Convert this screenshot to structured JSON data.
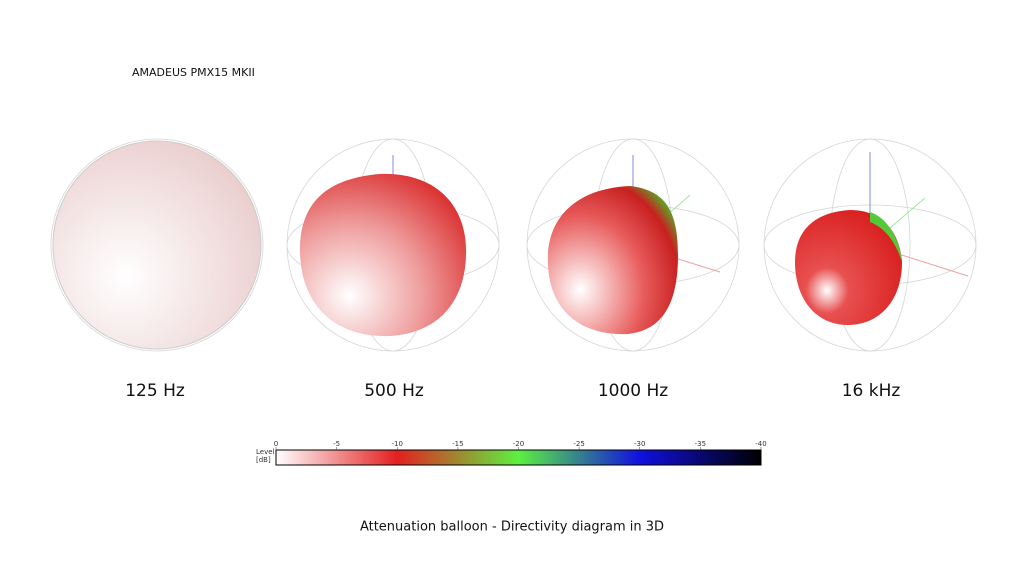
{
  "title": "AMADEUS PMX15 MKII",
  "panels": [
    {
      "label": "125 Hz"
    },
    {
      "label": "500 Hz"
    },
    {
      "label": "1000 Hz"
    },
    {
      "label": "16 kHz"
    }
  ],
  "colorbar": {
    "label_lines": [
      "Level",
      "[dB]"
    ],
    "ticks": [
      0,
      -5,
      -10,
      -15,
      -20,
      -25,
      -30,
      -35,
      -40
    ]
  },
  "caption": "Attenuation balloon - Directivity diagram in 3D"
}
